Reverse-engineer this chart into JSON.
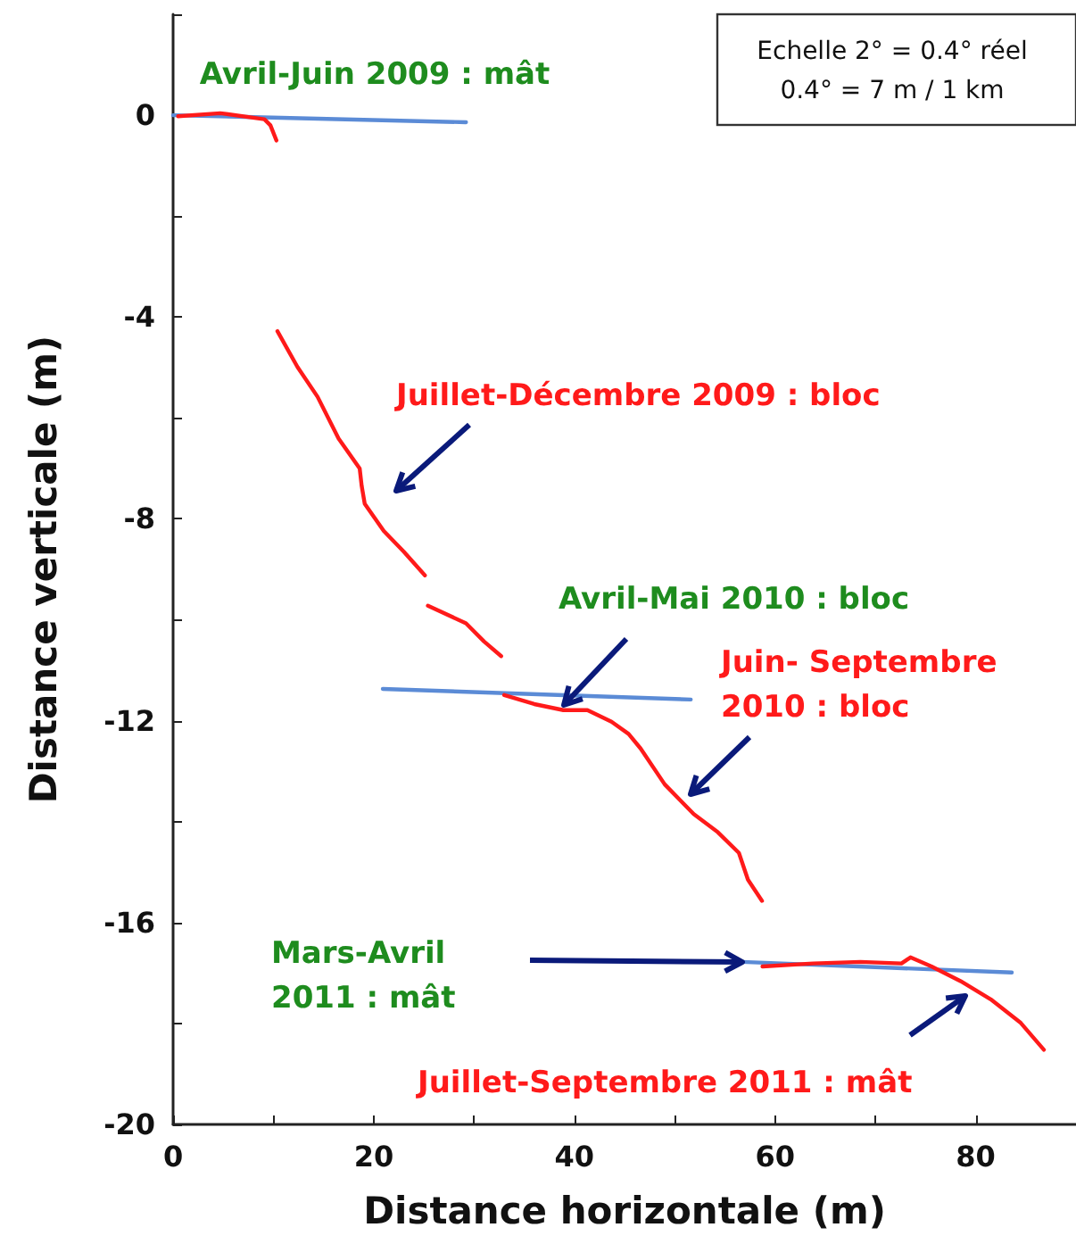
{
  "chart_data": {
    "type": "line",
    "xlabel": "Distance horizontale (m)",
    "ylabel": "Distance verticale (m)",
    "xlim": [
      0,
      90
    ],
    "ylim": [
      -20,
      2
    ],
    "xticks": [
      0,
      {
        "value": 10,
        "label": null
      },
      20,
      {
        "value": 30,
        "label": null
      },
      40,
      {
        "value": 50,
        "label": null
      },
      60,
      {
        "value": 70,
        "label": null
      },
      80,
      {
        "value": 90,
        "label": null
      }
    ],
    "yticks": [
      -20,
      {
        "value": -18,
        "label": null
      },
      -16,
      {
        "value": -14,
        "label": null
      },
      -12,
      {
        "value": -10,
        "label": null
      },
      -8,
      {
        "value": -6,
        "label": null
      },
      -4,
      {
        "value": -2,
        "label": null
      },
      0,
      {
        "value": 2,
        "label": null
      }
    ],
    "grid": false,
    "series": [
      {
        "color": "#ff1a1a",
        "x": [
          0.5,
          4.7,
          9.1,
          9.7,
          10.3,
          10.35,
          10.4,
          12.4,
          14.4,
          16.5,
          18.6,
          18.8,
          19.1,
          21.0,
          23.0,
          25.1,
          25.2,
          25.4,
          29.2,
          31.0,
          32.7,
          32.8,
          33.0,
          36.0,
          38.9,
          41.3,
          43.7,
          45.4,
          46.6,
          49.0,
          51.9,
          54.3,
          56.4,
          57.3,
          58.7,
          58.72,
          58.75,
          63.8,
          68.5,
          72.6,
          73.5,
          75.6,
          78.5,
          81.5,
          84.5,
          86.8
        ],
        "values": [
          -0.02,
          0.04,
          -0.08,
          -0.2,
          -0.5,
          null,
          -4.28,
          -4.99,
          -5.58,
          -6.41,
          -7.0,
          -7.35,
          -7.7,
          -8.24,
          -8.65,
          -9.12,
          null,
          -9.72,
          -10.07,
          -10.43,
          -10.72,
          null,
          -11.49,
          -11.67,
          -11.79,
          -11.79,
          -12.02,
          -12.26,
          -12.55,
          -13.26,
          -13.85,
          -14.21,
          -14.62,
          -15.15,
          -15.57,
          null,
          -16.87,
          -16.81,
          -16.78,
          -16.81,
          -16.69,
          -16.87,
          -17.16,
          -17.52,
          -17.99,
          -18.52
        ]
      },
      {
        "color": "#5b8bd6",
        "x": [
          0,
          29.2
        ],
        "values": [
          0,
          -0.14
        ]
      },
      {
        "color": "#5b8bd6",
        "x": [
          20.9,
          51.6
        ],
        "values": [
          -11.37,
          -11.58
        ]
      },
      {
        "color": "#5b8bd6",
        "x": [
          56.7,
          83.6
        ],
        "values": [
          -16.78,
          -16.99
        ]
      }
    ],
    "annotations": [
      "Avril-Juin 2009 : mât",
      "Echelle 2° = 0.4° réel\n0.4° = 7 m / 1 km",
      "Juillet-Décembre 2009 : bloc",
      "Avril-Mai 2010 : bloc",
      "Juin- Septembre\n2010 : bloc",
      "Mars-Avril\n2011 : mât",
      "Juillet-Septembre 2011 : mât"
    ]
  }
}
